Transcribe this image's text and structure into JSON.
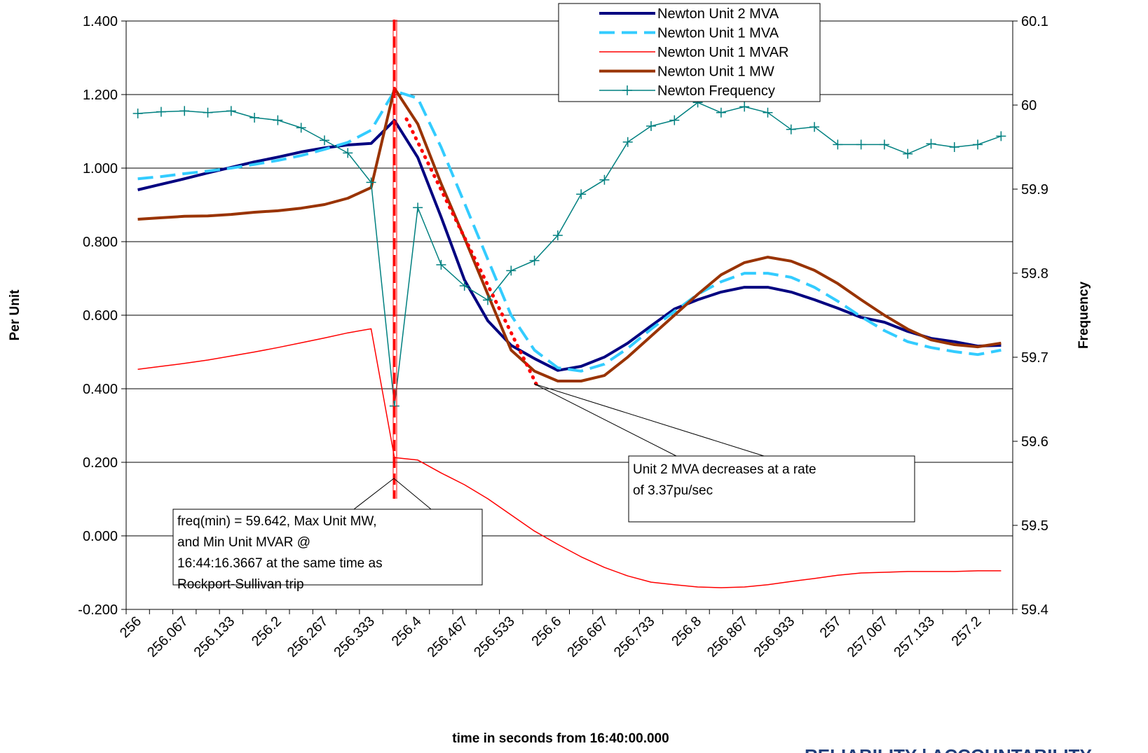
{
  "chart_data": {
    "type": "line",
    "x_label": "time in seconds from 16:40:00.000",
    "y_label": "Per Unit",
    "y2_label": "Frequency",
    "categories": [
      "256",
      null,
      "256.067",
      null,
      "256.133",
      null,
      "256.2",
      null,
      "256.267",
      null,
      "256.333",
      null,
      "256.4",
      null,
      "256.467",
      null,
      "256.533",
      null,
      "256.6",
      null,
      "256.667",
      null,
      "256.733",
      null,
      "256.8",
      null,
      "256.867",
      null,
      "256.933",
      null,
      "257",
      null,
      "257.067",
      null,
      "257.133",
      null,
      "257.2",
      null
    ],
    "ylim": [
      -0.2,
      1.4
    ],
    "yticks": [
      {
        "value": -0.2,
        "label": "-0.200"
      },
      {
        "value": 0,
        "label": "0.000"
      },
      {
        "value": 0.2,
        "label": "0.200"
      },
      {
        "value": 0.4,
        "label": "0.400"
      },
      {
        "value": 0.6,
        "label": "0.600"
      },
      {
        "value": 0.8,
        "label": "0.800"
      },
      {
        "value": 1,
        "label": "1.000"
      },
      {
        "value": 1.2,
        "label": "1.200"
      },
      {
        "value": 1.4,
        "label": "1.400"
      }
    ],
    "y2lim": [
      59.4,
      60.1
    ],
    "y2ticks": [
      59.4,
      59.5,
      59.6,
      59.7,
      59.8,
      59.9,
      60,
      60.1
    ],
    "grid": true,
    "legend": "top-right",
    "series": [
      {
        "name": "Newton Unit 2 MVA",
        "color": "#000080",
        "style": "solid",
        "values": [
          0.941,
          0.956,
          0.971,
          0.987,
          1.002,
          1.017,
          1.03,
          1.044,
          1.055,
          1.063,
          1.067,
          1.13,
          1.029,
          0.867,
          0.696,
          0.585,
          0.518,
          0.482,
          0.45,
          0.461,
          0.486,
          0.524,
          0.571,
          0.617,
          0.642,
          0.663,
          0.676,
          0.676,
          0.663,
          0.642,
          0.619,
          0.594,
          0.581,
          0.556,
          0.537,
          0.528,
          0.516,
          0.518
        ]
      },
      {
        "name": "Newton Unit 1 MVA",
        "color": "#33ccff",
        "style": "dashed",
        "values": [
          0.971,
          0.977,
          0.985,
          0.992,
          1.0,
          1.01,
          1.021,
          1.034,
          1.051,
          1.07,
          1.103,
          1.21,
          1.19,
          1.057,
          0.905,
          0.752,
          0.6,
          0.505,
          0.457,
          0.448,
          0.467,
          0.51,
          0.562,
          0.61,
          0.657,
          0.691,
          0.714,
          0.714,
          0.703,
          0.676,
          0.638,
          0.596,
          0.558,
          0.528,
          0.512,
          0.501,
          0.493,
          0.505
        ]
      },
      {
        "name": "Newton Unit 1 MVAR",
        "color": "#ff0000",
        "style": "thin",
        "values": [
          0.453,
          0.461,
          0.469,
          0.478,
          0.489,
          0.5,
          0.512,
          0.525,
          0.538,
          0.552,
          0.563,
          0.213,
          0.206,
          0.171,
          0.139,
          0.101,
          0.057,
          0.013,
          -0.023,
          -0.057,
          -0.086,
          -0.109,
          -0.126,
          -0.133,
          -0.139,
          -0.141,
          -0.139,
          -0.133,
          -0.124,
          -0.116,
          -0.107,
          -0.101,
          -0.099,
          -0.097,
          -0.097,
          -0.097,
          -0.095,
          -0.095
        ]
      },
      {
        "name": "Newton Unit 1 MW",
        "color": "#993300",
        "style": "solid",
        "values": [
          0.861,
          0.865,
          0.869,
          0.87,
          0.874,
          0.88,
          0.884,
          0.891,
          0.901,
          0.918,
          0.947,
          1.217,
          1.12,
          0.958,
          0.81,
          0.657,
          0.505,
          0.448,
          0.421,
          0.421,
          0.436,
          0.486,
          0.543,
          0.6,
          0.657,
          0.71,
          0.743,
          0.758,
          0.747,
          0.722,
          0.686,
          0.642,
          0.6,
          0.562,
          0.533,
          0.52,
          0.514,
          0.524
        ]
      },
      {
        "name": "Newton Frequency",
        "color": "#008080",
        "style": "marker",
        "axis": "y2",
        "values": [
          59.99,
          59.992,
          59.993,
          59.991,
          59.993,
          59.985,
          59.982,
          59.973,
          59.958,
          59.943,
          59.908,
          59.642,
          59.878,
          59.81,
          59.785,
          59.768,
          59.803,
          59.815,
          59.845,
          59.894,
          59.911,
          59.956,
          59.975,
          59.982,
          60.003,
          59.991,
          59.998,
          59.991,
          59.971,
          59.974,
          59.953,
          59.953,
          59.953,
          59.942,
          59.954,
          59.95,
          59.953,
          59.963
        ]
      }
    ],
    "annotations": [
      {
        "lines": [
          "freq(min) = 59.642, Max Unit MW,",
          "and Min Unit MVAR @",
          "16:44:16.3667 at the same time as",
          "Rockport-Sullivan trip"
        ]
      },
      {
        "lines": [
          "Unit 2 MVA decreases at a rate",
          "of 3.37pu/sec"
        ]
      }
    ],
    "footer": "RELIABILITY | ACCOUNTABILITY"
  }
}
